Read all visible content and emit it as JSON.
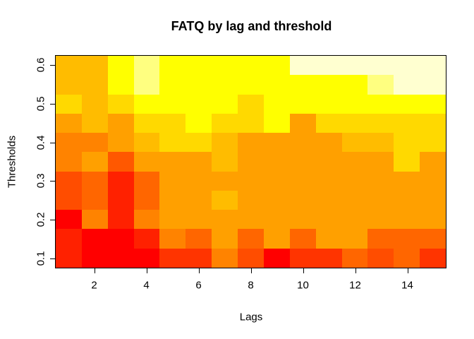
{
  "title": "FATQ by lag and threshold",
  "x_axis": {
    "label": "Lags",
    "tick_labels": [
      2,
      4,
      6,
      8,
      10,
      12,
      14
    ],
    "range": [
      0.5,
      15.5
    ]
  },
  "y_axis": {
    "label": "Thresholds",
    "tick_labels": [
      0.1,
      0.2,
      0.3,
      0.4,
      0.5,
      0.6
    ],
    "range": [
      0.075,
      0.625
    ]
  },
  "chart_data": {
    "type": "heatmap",
    "title": "FATQ by lag and threshold",
    "xlabel": "Lags",
    "ylabel": "Thresholds",
    "lags": [
      1,
      2,
      3,
      4,
      5,
      6,
      7,
      8,
      9,
      10,
      11,
      12,
      13,
      14,
      15
    ],
    "thresholds_top_to_bottom": [
      0.6,
      0.55,
      0.5,
      0.45,
      0.4,
      0.35,
      0.3,
      0.25,
      0.2,
      0.15,
      0.1
    ],
    "palette_heat_scale": [
      "#FF0000",
      "#FF2100",
      "#FF3400",
      "#FF4D00",
      "#FF5800",
      "#FF6600",
      "#FF8300",
      "#FFA000",
      "#FFBC00",
      "#FFD900",
      "#FFFF00",
      "#FFFF80",
      "#FFFFD0"
    ],
    "cell_colors_rows_top_to_bottom": [
      [
        "#FFBC00",
        "#FFBC00",
        "#FFFF00",
        "#FFFF80",
        "#FFFF00",
        "#FFFF00",
        "#FFFF00",
        "#FFFF00",
        "#FFFF00",
        "#FFFFD0",
        "#FFFFD0",
        "#FFFFD0",
        "#FFFFD0",
        "#FFFFD0",
        "#FFFFD0"
      ],
      [
        "#FFBC00",
        "#FFBC00",
        "#FFFF00",
        "#FFFF80",
        "#FFFF00",
        "#FFFF00",
        "#FFFF00",
        "#FFFF00",
        "#FFFF00",
        "#FFFF00",
        "#FFFF00",
        "#FFFF00",
        "#FFFF80",
        "#FFFFD0",
        "#FFFFD0"
      ],
      [
        "#FFD900",
        "#FFBC00",
        "#FFD900",
        "#FFFF00",
        "#FFFF00",
        "#FFFF00",
        "#FFFF00",
        "#FFD900",
        "#FFFF00",
        "#FFFF00",
        "#FFFF00",
        "#FFFF00",
        "#FFFF00",
        "#FFFF00",
        "#FFFF00"
      ],
      [
        "#FFA000",
        "#FFBC00",
        "#FFA000",
        "#FFD900",
        "#FFD900",
        "#FFFF00",
        "#FFD900",
        "#FFD900",
        "#FFFF00",
        "#FFA000",
        "#FFD900",
        "#FFD900",
        "#FFD900",
        "#FFD900",
        "#FFD900"
      ],
      [
        "#FF8300",
        "#FF8300",
        "#FFA000",
        "#FFBC00",
        "#FFD900",
        "#FFD900",
        "#FFBC00",
        "#FFA000",
        "#FFA000",
        "#FFA000",
        "#FFA000",
        "#FFBC00",
        "#FFBC00",
        "#FFD900",
        "#FFD900"
      ],
      [
        "#FF8300",
        "#FFA000",
        "#FF5800",
        "#FFA000",
        "#FFA000",
        "#FFA000",
        "#FFBC00",
        "#FFA000",
        "#FFA000",
        "#FFA000",
        "#FFA000",
        "#FFA000",
        "#FFA000",
        "#FFD900",
        "#FFA000"
      ],
      [
        "#FF4D00",
        "#FF6600",
        "#FF2100",
        "#FF6600",
        "#FFA000",
        "#FFA000",
        "#FFA000",
        "#FFA000",
        "#FFA000",
        "#FFA000",
        "#FFA000",
        "#FFA000",
        "#FFA000",
        "#FFA000",
        "#FFA000"
      ],
      [
        "#FF4D00",
        "#FF6600",
        "#FF2100",
        "#FF6600",
        "#FFA000",
        "#FFA000",
        "#FFBC00",
        "#FFA000",
        "#FFA000",
        "#FFA000",
        "#FFA000",
        "#FFA000",
        "#FFA000",
        "#FFA000",
        "#FFA000"
      ],
      [
        "#FF0000",
        "#FF8300",
        "#FF2100",
        "#FF8300",
        "#FFA000",
        "#FFA000",
        "#FFA000",
        "#FFA000",
        "#FFA000",
        "#FFA000",
        "#FFA000",
        "#FFA000",
        "#FFA000",
        "#FFA000",
        "#FFA000"
      ],
      [
        "#FF2100",
        "#FF0000",
        "#FF0000",
        "#FF2100",
        "#FF8300",
        "#FF6600",
        "#FFA000",
        "#FF6600",
        "#FFA000",
        "#FF6600",
        "#FFA000",
        "#FFA000",
        "#FF6600",
        "#FF6600",
        "#FF6600"
      ],
      [
        "#FF2100",
        "#FF0000",
        "#FF0000",
        "#FF0000",
        "#FF3400",
        "#FF3400",
        "#FF8300",
        "#FF4D00",
        "#FF0000",
        "#FF3400",
        "#FF3400",
        "#FF6600",
        "#FF4D00",
        "#FF6600",
        "#FF3400"
      ]
    ]
  }
}
